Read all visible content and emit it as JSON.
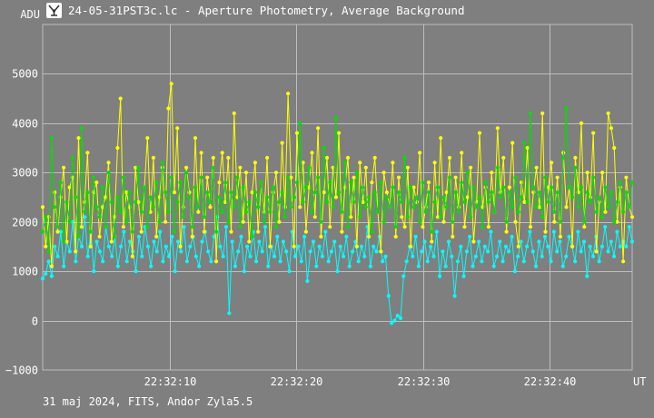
{
  "window": {
    "title": "24-05-31PST3c.lc - Aperture Photometry, Average Background",
    "icon": "telescope-app-icon"
  },
  "footer": {
    "text": "31 maj 2024, FITS, Andor Zyla5.5"
  },
  "colors": {
    "background": "#7f7f7f",
    "grid": "#bdbdbd",
    "series_yellow": "#ffff00",
    "series_green": "#00e000",
    "series_cyan": "#00ffff"
  },
  "chart_data": {
    "type": "line",
    "ylabel": "ADU",
    "xlabel": "UT",
    "ylim": [
      -1000,
      6000
    ],
    "xlim": [
      0,
      46.5
    ],
    "y_ticks": [
      "5000",
      "4000",
      "3000",
      "2000",
      "1000",
      "0",
      "−1000"
    ],
    "y_tick_values": [
      5000,
      4000,
      3000,
      2000,
      1000,
      0,
      -1000
    ],
    "x_ticks": [
      "22:32:10",
      "22:32:20",
      "22:32:30",
      "22:32:40"
    ],
    "x_tick_values": [
      10,
      20,
      30,
      40
    ],
    "grid": true,
    "series": [
      {
        "color": "#ffff00",
        "values": [
          2300,
          1500,
          2100,
          1100,
          2600,
          1800,
          2500,
          3100,
          1600,
          2700,
          2900,
          1400,
          3700,
          1900,
          2400,
          3400,
          1500,
          2600,
          2800,
          1700,
          2300,
          2500,
          3200,
          1600,
          2100,
          3500,
          4500,
          1900,
          2600,
          2300,
          1300,
          3100,
          2400,
          1800,
          2700,
          3700,
          2200,
          3300,
          1700,
          2500,
          3100,
          2000,
          4300,
          4800,
          2600,
          3900,
          1500,
          2300,
          3100,
          2600,
          1700,
          3700,
          2200,
          3400,
          1800,
          2900,
          2300,
          3300,
          1200,
          2800,
          3400,
          2400,
          3300,
          1800,
          4200,
          2500,
          3100,
          2000,
          3000,
          1600,
          2600,
          3200,
          1800,
          2800,
          2200,
          3300,
          1500,
          2600,
          3000,
          2000,
          3600,
          2300,
          4600,
          2900,
          1500,
          3800,
          2300,
          3200,
          1800,
          2700,
          3400,
          2100,
          3900,
          1700,
          2600,
          3300,
          1900,
          3100,
          2500,
          3800,
          1800,
          2700,
          3300,
          2100,
          2900,
          1500,
          3200,
          2400,
          3100,
          1700,
          2800,
          3300,
          2200,
          1400,
          3000,
          2600,
          2300,
          3200,
          1700,
          2900,
          2100,
          1900,
          3100,
          1500,
          2700,
          2400,
          3400,
          1900,
          2300,
          2800,
          1600,
          3200,
          2100,
          3700,
          2000,
          2600,
          3300,
          1700,
          2900,
          2300,
          3400,
          1900,
          2500,
          3100,
          1600,
          2400,
          3800,
          2300,
          2700,
          1900,
          3000,
          2200,
          3900,
          2600,
          3300,
          1800,
          2700,
          3600,
          2000,
          1500,
          2800,
          2400,
          3500,
          1900,
          2600,
          3100,
          2300,
          4200,
          1800,
          2700,
          3200,
          2000,
          2900,
          1700,
          3400,
          2300,
          2700,
          1500,
          3300,
          2600,
          4000,
          1900,
          3000,
          2500,
          3800,
          1400,
          2400,
          3000,
          2200,
          4200,
          3900,
          3500,
          2000,
          2700,
          1200,
          2900,
          2300,
          2100
        ]
      },
      {
        "color": "#00e000",
        "values": [
          1800,
          2100,
          1400,
          3700,
          2300,
          1900,
          2800,
          1600,
          2400,
          2000,
          3300,
          2500,
          1700,
          3900,
          2200,
          2600,
          1800,
          2900,
          2300,
          2100,
          2700,
          1900,
          3000,
          2400,
          1700,
          2500,
          2200,
          2900,
          2000,
          2600,
          1800,
          2400,
          3100,
          2200,
          2700,
          1900,
          2500,
          2300,
          2800,
          2000,
          3200,
          2600,
          2200,
          2900,
          1800,
          2400,
          2800,
          2100,
          3000,
          2500,
          1900,
          2700,
          2300,
          2900,
          2100,
          2600,
          2400,
          3100,
          1800,
          2500,
          2200,
          2800,
          2000,
          2600,
          2300,
          2900,
          1900,
          2700,
          2200,
          2400,
          1700,
          2600,
          2300,
          2800,
          2000,
          2500,
          2200,
          2700,
          1900,
          2400,
          2600,
          2100,
          2900,
          2300,
          2500,
          2800,
          4000,
          2400,
          2700,
          3100,
          2200,
          2600,
          2900,
          2000,
          3500,
          2400,
          2800,
          2300,
          4100,
          2600,
          2200,
          3200,
          1900,
          2800,
          2400,
          3000,
          2100,
          2700,
          2300,
          2500,
          1800,
          2600,
          2200,
          2800,
          2000,
          2500,
          2300,
          2700,
          1900,
          2600,
          2400,
          3300,
          2100,
          2700,
          2300,
          2500,
          2000,
          2800,
          2200,
          2600,
          1800,
          2400,
          2700,
          2100,
          2500,
          2300,
          2900,
          2000,
          2600,
          2200,
          2800,
          2400,
          3000,
          2100,
          2700,
          2300,
          2500,
          1900,
          2800,
          2400,
          2600,
          2200,
          3100,
          2500,
          2700,
          2000,
          2600,
          2300,
          2900,
          2200,
          2500,
          3600,
          2400,
          4200,
          2700,
          2300,
          2600,
          2100,
          2900,
          2400,
          2700,
          2200,
          2600,
          2000,
          3300,
          4300,
          2700,
          2500,
          3100,
          2300,
          2700,
          2000,
          2600,
          2400,
          2900,
          2200,
          2500,
          2100,
          2700,
          2300,
          2600,
          2000,
          2400,
          2800,
          2200,
          2600,
          2300,
          2800
        ]
      },
      {
        "color": "#00ffff",
        "values": [
          850,
          950,
          1200,
          900,
          1500,
          1300,
          1800,
          1100,
          1600,
          1400,
          2000,
          1200,
          1700,
          1500,
          2100,
          1300,
          1800,
          1000,
          1600,
          1400,
          1200,
          1900,
          1500,
          1300,
          1700,
          1100,
          1500,
          1800,
          1200,
          1600,
          1400,
          1000,
          1700,
          1300,
          1900,
          1500,
          1100,
          1600,
          1400,
          1800,
          1200,
          1500,
          1300,
          1700,
          1000,
          1600,
          1400,
          1900,
          1200,
          1500,
          1700,
          1300,
          1100,
          1600,
          1800,
          1400,
          1200,
          1700,
          2100,
          1500,
          1300,
          1900,
          150,
          1600,
          1100,
          1400,
          1700,
          1000,
          1500,
          1300,
          1800,
          1200,
          1600,
          1400,
          1900,
          1100,
          1500,
          1300,
          1700,
          1200,
          1600,
          1400,
          1000,
          1800,
          1300,
          1500,
          1200,
          1700,
          800,
          1400,
          1600,
          1100,
          1500,
          1300,
          1800,
          1200,
          1400,
          1600,
          1000,
          1500,
          1300,
          1700,
          1100,
          1400,
          1600,
          1200,
          1500,
          1300,
          1900,
          1100,
          1500,
          1400,
          1700,
          1200,
          1300,
          500,
          -50,
          0,
          100,
          50,
          900,
          1200,
          1500,
          1300,
          1700,
          1100,
          1400,
          1600,
          1200,
          1500,
          1300,
          1800,
          900,
          1400,
          1100,
          1600,
          1300,
          500,
          1200,
          1500,
          900,
          1400,
          1700,
          1100,
          1300,
          1600,
          1200,
          1500,
          1400,
          1800,
          1100,
          1300,
          1600,
          1200,
          1500,
          1400,
          1700,
          1000,
          1300,
          1600,
          1200,
          1500,
          1800,
          1400,
          1100,
          1600,
          1300,
          1700,
          1500,
          1200,
          1800,
          1400,
          1600,
          1100,
          1300,
          1700,
          1500,
          1200,
          1800,
          1400,
          1600,
          900,
          1500,
          1300,
          1700,
          1200,
          1500,
          1900,
          1400,
          1600,
          1300,
          1800,
          1500,
          1600,
          1500,
          1900,
          1600
        ]
      }
    ]
  }
}
